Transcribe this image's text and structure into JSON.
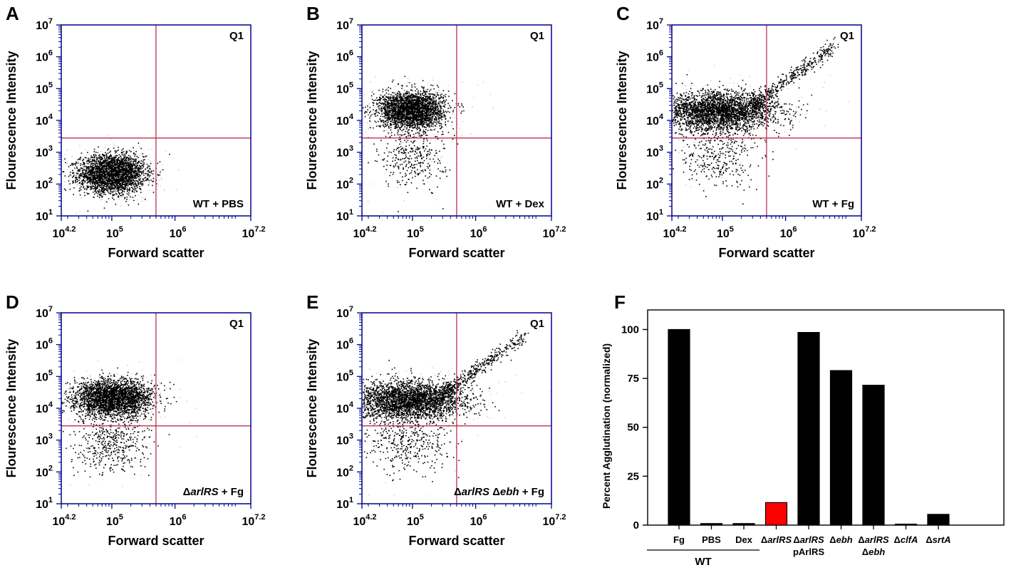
{
  "chart_data": [
    {
      "panel": "A",
      "type": "scatter",
      "ylabel": "Flourescence Intensity",
      "xlabel": "Forward scatter",
      "x_scale": "log",
      "y_scale": "log",
      "xlim": [
        15849,
        15848932
      ],
      "ylim": [
        10,
        10000000
      ],
      "x_ticks": [
        "10^4.2",
        "10^5",
        "10^6",
        "10^7.2"
      ],
      "y_ticks": [
        "10^1",
        "10^2",
        "10^3",
        "10^4",
        "10^5",
        "10^6",
        "10^7"
      ],
      "gate": {
        "x": 500000,
        "y": 2800
      },
      "quadrant_label": "Q1",
      "condition": "WT + PBS",
      "populations": [
        {
          "x_center": 100000,
          "y_center": 220,
          "x_spread_log": 0.25,
          "y_spread_log": 0.28,
          "count": 3400
        }
      ]
    },
    {
      "panel": "B",
      "type": "scatter",
      "ylabel": "Flourescence Intensity",
      "xlabel": "Forward scatter",
      "x_scale": "log",
      "y_scale": "log",
      "xlim": [
        15849,
        15848932
      ],
      "ylim": [
        10,
        10000000
      ],
      "x_ticks": [
        "10^4.2",
        "10^5",
        "10^6",
        "10^7.2"
      ],
      "y_ticks": [
        "10^1",
        "10^2",
        "10^3",
        "10^4",
        "10^5",
        "10^6",
        "10^7"
      ],
      "gate": {
        "x": 500000,
        "y": 2800
      },
      "quadrant_label": "Q1",
      "condition": "WT + Dex",
      "populations": [
        {
          "x_center": 95000,
          "y_center": 22000,
          "x_spread_log": 0.25,
          "y_spread_log": 0.28,
          "count": 3000
        },
        {
          "x_center": 100000,
          "y_center": 900,
          "x_spread_log": 0.25,
          "y_spread_log": 0.55,
          "count": 350
        }
      ]
    },
    {
      "panel": "C",
      "type": "scatter",
      "ylabel": "Flourescence Intensity",
      "xlabel": "Forward scatter",
      "x_scale": "log",
      "y_scale": "log",
      "xlim": [
        15849,
        15848932
      ],
      "ylim": [
        10,
        10000000
      ],
      "x_ticks": [
        "10^4.2",
        "10^5",
        "10^6",
        "10^7.2"
      ],
      "y_ticks": [
        "10^1",
        "10^2",
        "10^3",
        "10^4",
        "10^5",
        "10^6",
        "10^7"
      ],
      "gate": {
        "x": 500000,
        "y": 2800
      },
      "quadrant_label": "Q1",
      "condition": "WT + Fg",
      "populations": [
        {
          "x_center": 90000,
          "y_center": 20000,
          "x_spread_log": 0.45,
          "y_spread_log": 0.3,
          "count": 3000
        },
        {
          "x_center": 80000,
          "y_center": 900,
          "x_spread_log": 0.35,
          "y_spread_log": 0.5,
          "count": 350
        }
      ],
      "tail": {
        "x_from": 300000,
        "x_to": 6000000,
        "y_from": 30000,
        "y_to": 2500000,
        "count": 450
      }
    },
    {
      "panel": "D",
      "type": "scatter",
      "ylabel": "Flourescence Intensity",
      "xlabel": "Forward scatter",
      "x_scale": "log",
      "y_scale": "log",
      "xlim": [
        15849,
        15848932
      ],
      "ylim": [
        10,
        10000000
      ],
      "x_ticks": [
        "10^4.2",
        "10^5",
        "10^6",
        "10^7.2"
      ],
      "y_ticks": [
        "10^1",
        "10^2",
        "10^3",
        "10^4",
        "10^5",
        "10^6",
        "10^7"
      ],
      "gate": {
        "x": 500000,
        "y": 2800
      },
      "quadrant_label": "Q1",
      "condition_prefix": "Δ",
      "condition_italic": "arlRS",
      "condition_suffix": " + Fg",
      "populations": [
        {
          "x_center": 100000,
          "y_center": 22000,
          "x_spread_log": 0.3,
          "y_spread_log": 0.28,
          "count": 3100
        },
        {
          "x_center": 100000,
          "y_center": 900,
          "x_spread_log": 0.3,
          "y_spread_log": 0.5,
          "count": 450
        }
      ]
    },
    {
      "panel": "E",
      "type": "scatter",
      "ylabel": "Flourescence Intensity",
      "xlabel": "Forward scatter",
      "x_scale": "log",
      "y_scale": "log",
      "xlim": [
        15849,
        15848932
      ],
      "ylim": [
        10,
        10000000
      ],
      "x_ticks": [
        "10^4.2",
        "10^5",
        "10^6",
        "10^7.2"
      ],
      "y_ticks": [
        "10^1",
        "10^2",
        "10^3",
        "10^4",
        "10^5",
        "10^6",
        "10^7"
      ],
      "gate": {
        "x": 500000,
        "y": 2800
      },
      "quadrant_label": "Q1",
      "condition_prefix": "Δ",
      "condition_italic": "arlRS",
      "condition_middle": " Δ",
      "condition_italic2": "ebh",
      "condition_suffix": " + Fg",
      "populations": [
        {
          "x_center": 85000,
          "y_center": 18000,
          "x_spread_log": 0.45,
          "y_spread_log": 0.3,
          "count": 3000
        },
        {
          "x_center": 80000,
          "y_center": 900,
          "x_spread_log": 0.35,
          "y_spread_log": 0.5,
          "count": 400
        }
      ],
      "tail": {
        "x_from": 300000,
        "x_to": 6000000,
        "y_from": 30000,
        "y_to": 2000000,
        "count": 420
      }
    },
    {
      "panel": "F",
      "type": "bar",
      "ylabel": "Percent Agglutination (normalized)",
      "ylim": [
        0,
        110
      ],
      "yticks": [
        "0",
        "25",
        "50",
        "75",
        "100"
      ],
      "group_label": "WT",
      "categories": [
        {
          "prefix": "",
          "label": "Fg",
          "line2": "",
          "italic": false
        },
        {
          "prefix": "",
          "label": "PBS",
          "line2": "",
          "italic": false
        },
        {
          "prefix": "",
          "label": "Dex",
          "line2": "",
          "italic": false
        },
        {
          "prefix": "Δ",
          "label": "arlRS",
          "line2": "",
          "italic": true
        },
        {
          "prefix": "Δ",
          "label": "arlRS",
          "line2": "pArlRS",
          "italic": true
        },
        {
          "prefix": "Δ",
          "label": "ebh",
          "line2": "",
          "italic": true
        },
        {
          "prefix": "Δ",
          "label": "arlRS",
          "line2": "Δebh",
          "italic": true
        },
        {
          "prefix": "Δ",
          "label": "clfA",
          "line2": "",
          "italic": true
        },
        {
          "prefix": "Δ",
          "label": "srtA",
          "line2": "",
          "italic": true
        }
      ],
      "values": [
        100,
        0.8,
        0.8,
        11.5,
        98.5,
        79,
        71.5,
        0.5,
        5.5
      ],
      "colors": [
        "#000000",
        "#000000",
        "#000000",
        "#ff0000",
        "#000000",
        "#000000",
        "#000000",
        "#000000",
        "#000000"
      ]
    }
  ]
}
